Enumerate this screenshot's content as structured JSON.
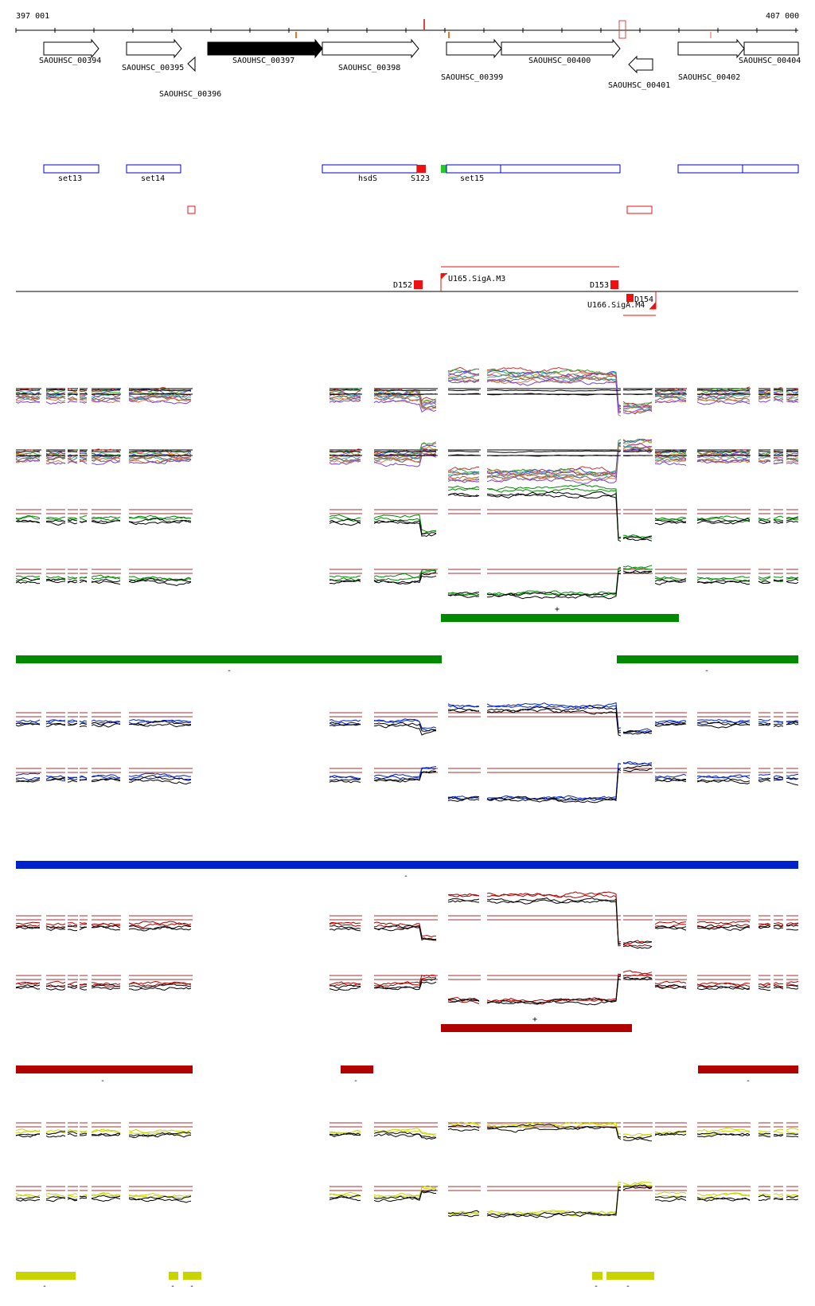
{
  "coords": {
    "start_label": "397 001",
    "end_label": "407 000"
  },
  "genes": [
    {
      "id": "SAOUHSC_00394",
      "strand": "+",
      "filled": false
    },
    {
      "id": "SAOUHSC_00395",
      "strand": "+",
      "filled": false
    },
    {
      "id": "SAOUHSC_00396",
      "strand": "-",
      "filled": false
    },
    {
      "id": "SAOUHSC_00397",
      "strand": "+",
      "filled": true
    },
    {
      "id": "SAOUHSC_00398",
      "strand": "+",
      "filled": false
    },
    {
      "id": "SAOUHSC_00399",
      "strand": "+",
      "filled": false
    },
    {
      "id": "SAOUHSC_00400",
      "strand": "+",
      "filled": false
    },
    {
      "id": "SAOUHSC_00401",
      "strand": "-",
      "filled": false
    },
    {
      "id": "SAOUHSC_00402",
      "strand": "+",
      "filled": false
    },
    {
      "id": "SAOUHSC_00404",
      "strand": "+",
      "filled": false
    }
  ],
  "features": [
    {
      "label": "set13"
    },
    {
      "label": "set14"
    },
    {
      "label": "hsdS"
    },
    {
      "label": "S123"
    },
    {
      "label": "set15"
    }
  ],
  "segments": [
    {
      "label": "D152"
    },
    {
      "label": "U165.SigA.M3"
    },
    {
      "label": "D153"
    },
    {
      "label": "D154"
    },
    {
      "label": "U166.SigA.M4"
    }
  ],
  "strand_labels": {
    "plus": "+",
    "minus": "-"
  },
  "colors": {
    "green": "#008a00",
    "blue": "#0022cc",
    "red": "#b00000",
    "yellow": "#c8d400",
    "feature_outline": "#0000cc",
    "segment_red": "#ee1111",
    "threshold": "#a03030"
  }
}
